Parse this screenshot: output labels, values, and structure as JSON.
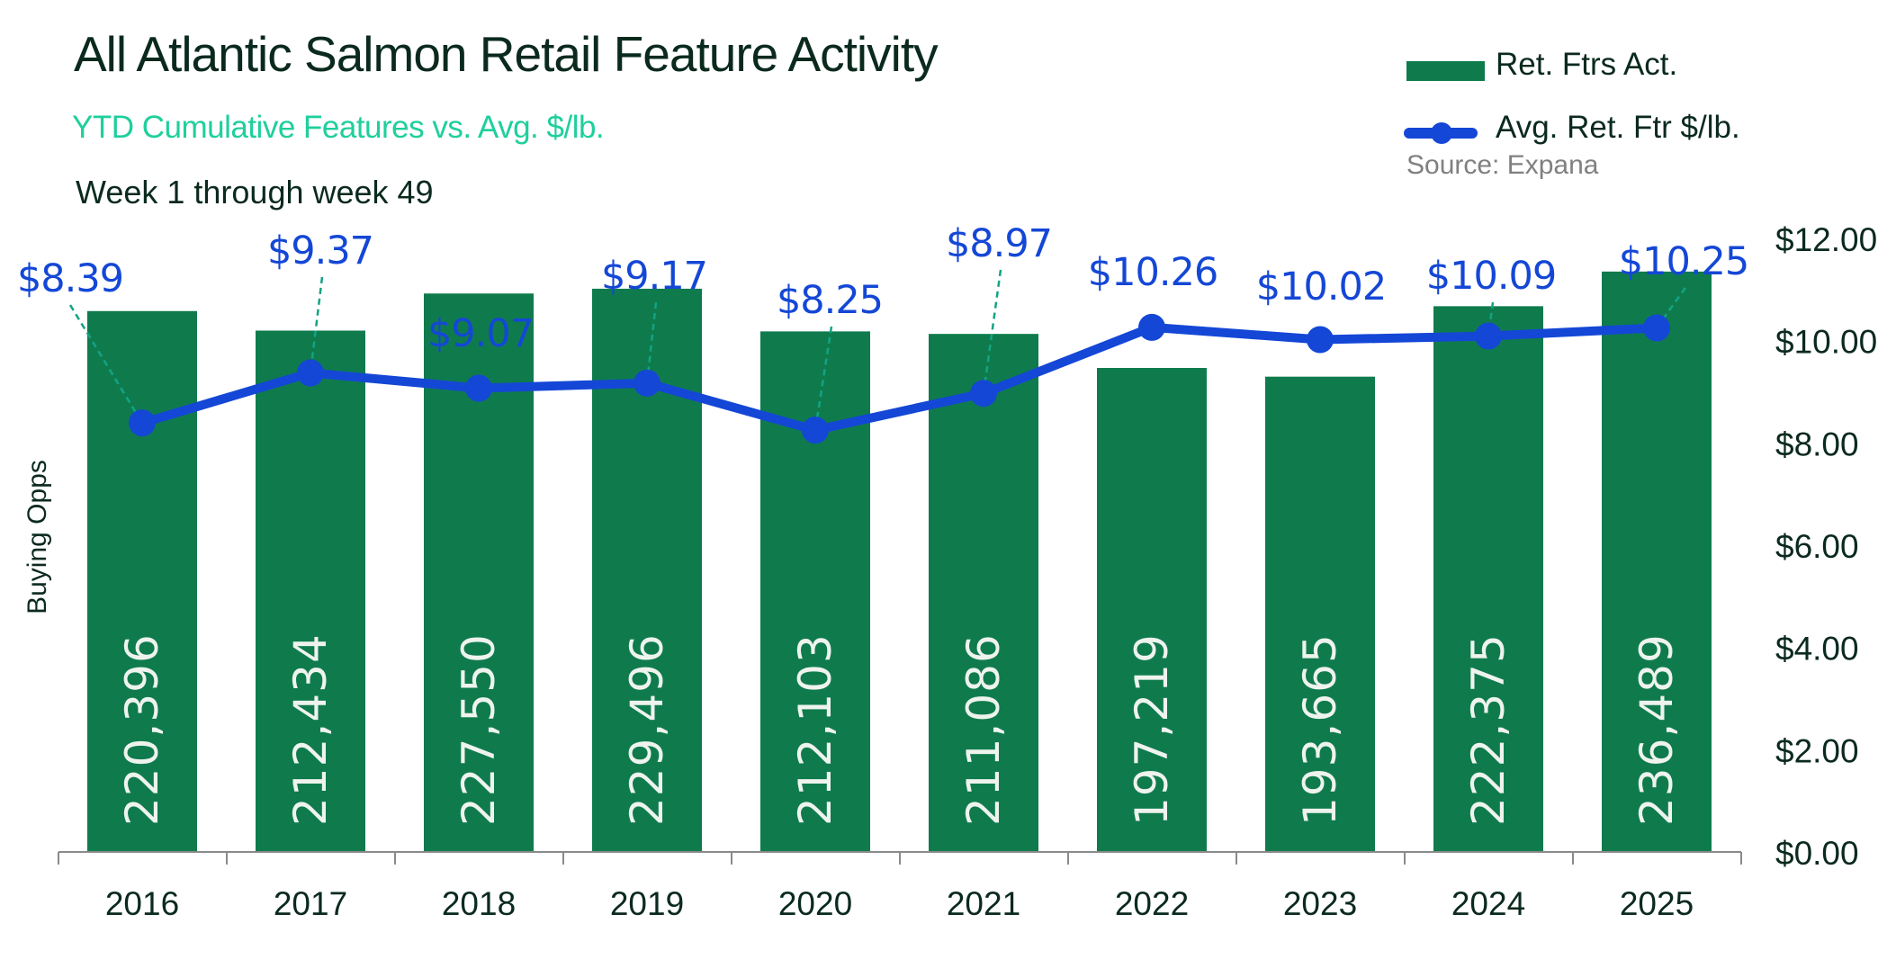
{
  "chart_data": {
    "type": "bar",
    "title": "All Atlantic Salmon Retail Feature Activity",
    "subtitle": "YTD Cumulative Features vs. Avg. $/lb.",
    "note": "Week 1 through week 49",
    "source": "Source: Expana",
    "ylabel": "Buying Opps",
    "categories": [
      "2016",
      "2017",
      "2018",
      "2019",
      "2020",
      "2021",
      "2022",
      "2023",
      "2024",
      "2025"
    ],
    "series": [
      {
        "name": "Ret. Ftrs Act.",
        "type": "bar",
        "axis": "left",
        "color": "#0f7b4d",
        "values": [
          220396,
          212434,
          227550,
          229496,
          212103,
          211086,
          197219,
          193665,
          222375,
          236489
        ],
        "labels": [
          "220,396",
          "212,434",
          "227,550",
          "229,496",
          "212,103",
          "211,086",
          "197,219",
          "193,665",
          "222,375",
          "236,489"
        ]
      },
      {
        "name": "Avg. Ret. Ftr $/lb.",
        "type": "line",
        "axis": "right",
        "color": "#1447d6",
        "values": [
          8.39,
          9.37,
          9.07,
          9.17,
          8.25,
          8.97,
          10.26,
          10.02,
          10.09,
          10.25
        ],
        "labels": [
          "$8.39",
          "$9.37",
          "$9.07",
          "$9.17",
          "$8.25",
          "$8.97",
          "$10.26",
          "$10.02",
          "$10.09",
          "$10.25"
        ]
      }
    ],
    "left_axis": {
      "range": [
        0,
        250000
      ],
      "visible": false
    },
    "right_axis": {
      "range": [
        0,
        12
      ],
      "ticks": [
        "$0.00",
        "$2.00",
        "$4.00",
        "$6.00",
        "$8.00",
        "$10.00",
        "$12.00"
      ]
    },
    "grid": false,
    "legend": "top-right",
    "leader_color": "#13a383"
  }
}
